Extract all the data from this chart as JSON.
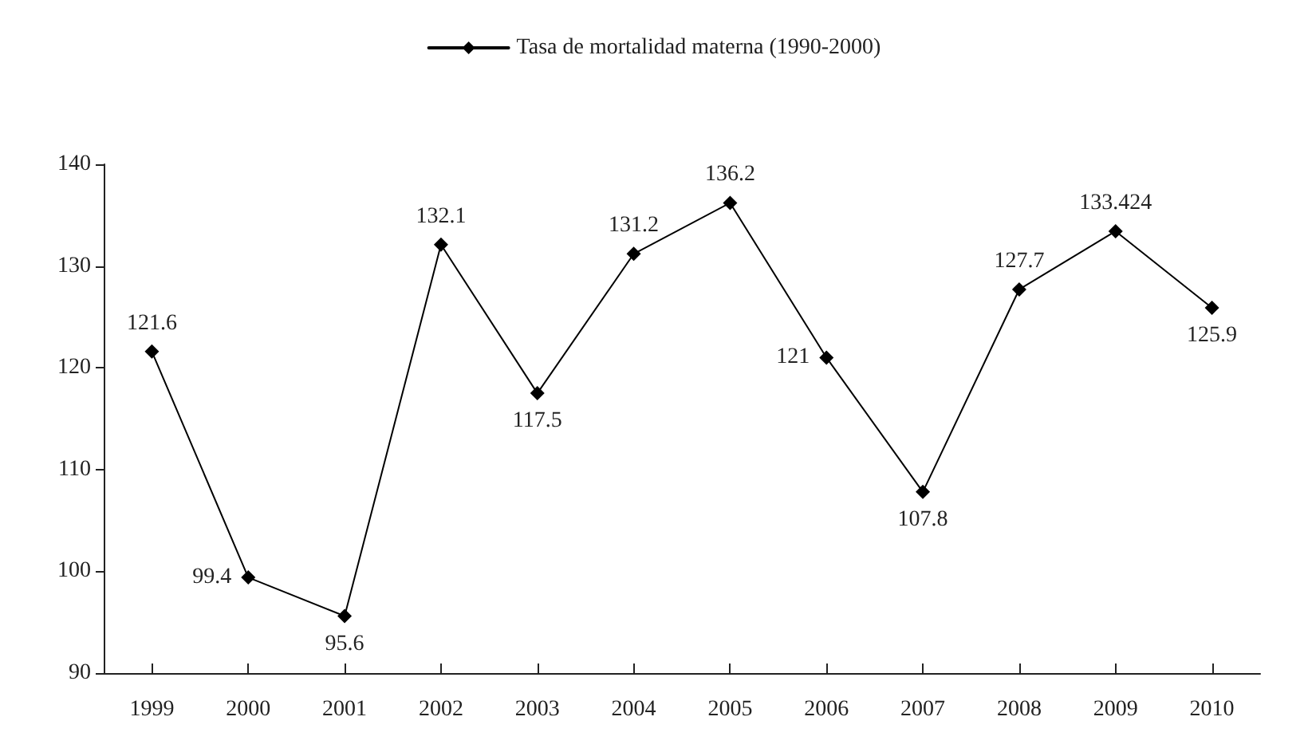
{
  "chart_data": {
    "type": "line",
    "categories": [
      "1999",
      "2000",
      "2001",
      "2002",
      "2003",
      "2004",
      "2005",
      "2006",
      "2007",
      "2008",
      "2009",
      "2010"
    ],
    "series": [
      {
        "name": "Tasa de mortalidad materna (1990-2000)",
        "color": "#000000",
        "values": [
          121.6,
          99.4,
          95.6,
          132.1,
          117.5,
          131.2,
          136.2,
          121,
          107.8,
          127.7,
          133.424,
          125.9
        ]
      }
    ],
    "ylim": [
      90,
      140
    ],
    "yticks": [
      90,
      100,
      110,
      120,
      130,
      140
    ],
    "grid": false,
    "legend": "top",
    "marker": "diamond",
    "line_style": "solid",
    "data_labels": true
  }
}
